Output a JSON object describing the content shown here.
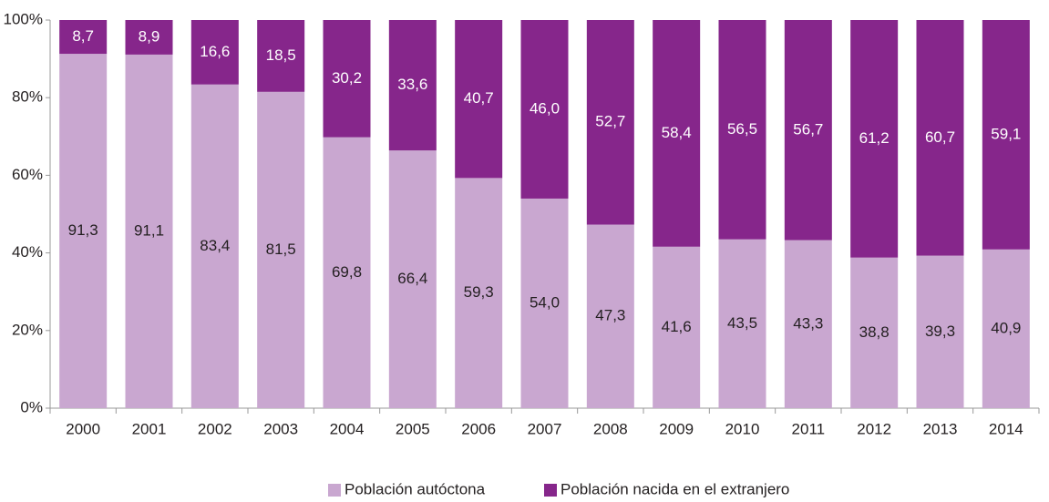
{
  "chart_data": {
    "type": "stacked_bar",
    "categories": [
      "2000",
      "2001",
      "2002",
      "2003",
      "2004",
      "2005",
      "2006",
      "2007",
      "2008",
      "2009",
      "2010",
      "2011",
      "2012",
      "2013",
      "2014"
    ],
    "series": [
      {
        "name": "Población autóctona",
        "color": "#c9a7d0",
        "values": [
          91.3,
          91.1,
          83.4,
          81.5,
          69.8,
          66.4,
          59.3,
          54.0,
          47.3,
          41.6,
          43.5,
          43.3,
          38.8,
          39.3,
          40.9
        ],
        "value_labels": [
          "91,3",
          "91,1",
          "83,4",
          "81,5",
          "69,8",
          "66,4",
          "59,3",
          "54,0",
          "47,3",
          "41,6",
          "43,5",
          "43,3",
          "38,8",
          "39,3",
          "40,9"
        ]
      },
      {
        "name": "Población nacida en el extranjero",
        "color": "#86268b",
        "values": [
          8.7,
          8.9,
          16.6,
          18.5,
          30.2,
          33.6,
          40.7,
          46.0,
          52.7,
          58.4,
          56.5,
          56.7,
          61.2,
          60.7,
          59.1
        ],
        "value_labels": [
          "8,7",
          "8,9",
          "16,6",
          "18,5",
          "30,2",
          "33,6",
          "40,7",
          "46,0",
          "52,7",
          "58,4",
          "56,5",
          "56,7",
          "61,2",
          "60,7",
          "59,1"
        ]
      }
    ],
    "ylim": [
      0,
      100
    ],
    "yticks": [
      {
        "value": 0,
        "label": "0%"
      },
      {
        "value": 20,
        "label": "20%"
      },
      {
        "value": 40,
        "label": "40%"
      },
      {
        "value": 60,
        "label": "60%"
      },
      {
        "value": 80,
        "label": "80%"
      },
      {
        "value": 100,
        "label": "100%"
      }
    ],
    "legend": "bottom"
  }
}
